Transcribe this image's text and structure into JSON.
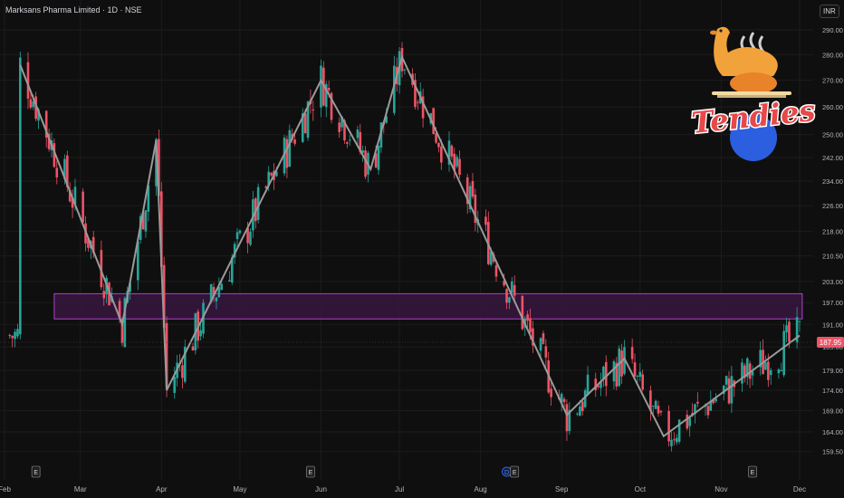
{
  "header": {
    "title": "Marksans Pharma Limited · 1D · NSE",
    "currency": "INR"
  },
  "logo": {
    "text": "Tendies",
    "icon": "roast-chicken-icon"
  },
  "colors": {
    "background": "#0f0f0f",
    "grid": "#1c1c1c",
    "up": "#26a69a",
    "down": "#ef5366",
    "zigzag": "#9a9a9a",
    "zone_stroke": "#b040d0",
    "zone_fill": "#3a1640",
    "last_price_bg": "#ef5366"
  },
  "chart_data": {
    "type": "candlestick",
    "title": "Marksans Pharma Limited · 1D · NSE",
    "y_ticks": [
      290.0,
      280.0,
      270.0,
      260.0,
      250.0,
      242.0,
      234.0,
      226.0,
      218.0,
      210.5,
      203.0,
      197.0,
      191.0,
      185.0,
      179.0,
      174.0,
      169.0,
      164.0,
      159.5
    ],
    "y_scale": "log",
    "ylim": [
      157,
      293
    ],
    "x_ticks": [
      "Feb",
      "Mar",
      "Apr",
      "May",
      "Jun",
      "Jul",
      "Aug",
      "Sep",
      "Oct",
      "Nov",
      "Dec"
    ],
    "last_price": 187.95,
    "last_price_label": "187.95",
    "zone": {
      "low": 192.5,
      "high": 199.5,
      "start": "Feb 20",
      "end": "Dec 2"
    },
    "earnings_markers": [
      {
        "label": "E",
        "date": "Feb 13"
      },
      {
        "label": "E",
        "date": "May 28"
      },
      {
        "label": "D",
        "date": "Aug 11"
      },
      {
        "label": "E",
        "date": "Aug 14"
      },
      {
        "label": "E",
        "date": "Nov 13"
      }
    ],
    "zigzag": [
      {
        "date": "Feb 7",
        "price": 276
      },
      {
        "date": "Mar 17",
        "price": 191
      },
      {
        "date": "Mar 30",
        "price": 248
      },
      {
        "date": "Apr 3",
        "price": 174
      },
      {
        "date": "Jun 1",
        "price": 270
      },
      {
        "date": "Jun 20",
        "price": 238
      },
      {
        "date": "Jul 2",
        "price": 279
      },
      {
        "date": "Sep 3",
        "price": 168
      },
      {
        "date": "Sep 25",
        "price": 182
      },
      {
        "date": "Oct 10",
        "price": 163
      },
      {
        "date": "Dec 1",
        "price": 188
      }
    ]
  }
}
